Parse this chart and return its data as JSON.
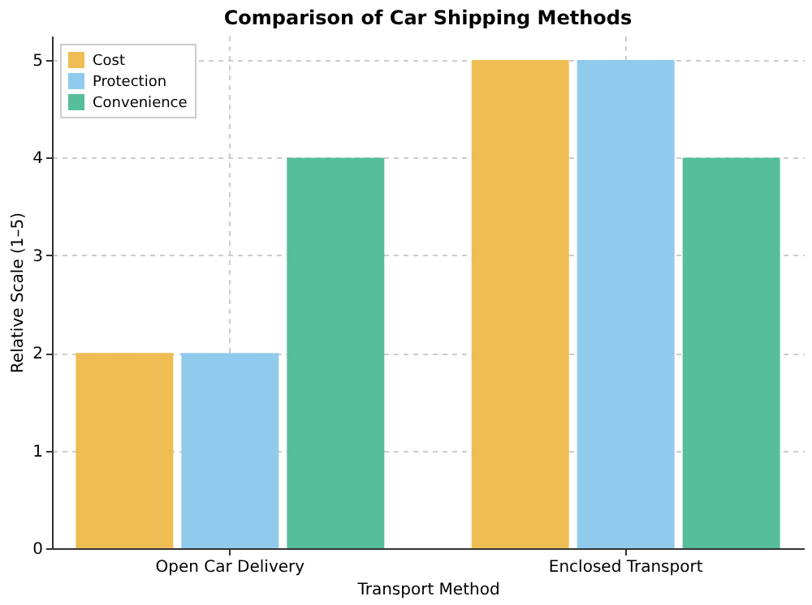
{
  "chart_data": {
    "type": "bar",
    "title": "Comparison of Car Shipping Methods",
    "xlabel": "Transport Method",
    "ylabel": "Relative Scale (1–5)",
    "categories": [
      "Open Car Delivery",
      "Enclosed Transport"
    ],
    "series": [
      {
        "name": "Cost",
        "color": "#eeb94a",
        "values": [
          2,
          5
        ]
      },
      {
        "name": "Protection",
        "color": "#8ac8ec",
        "values": [
          2,
          5
        ]
      },
      {
        "name": "Convenience",
        "color": "#4dba96",
        "values": [
          4,
          4
        ]
      }
    ],
    "ylim": [
      0,
      5.25
    ],
    "yticks": [
      0,
      1,
      2,
      3,
      4,
      5
    ],
    "grid": true,
    "legend": "top left"
  }
}
